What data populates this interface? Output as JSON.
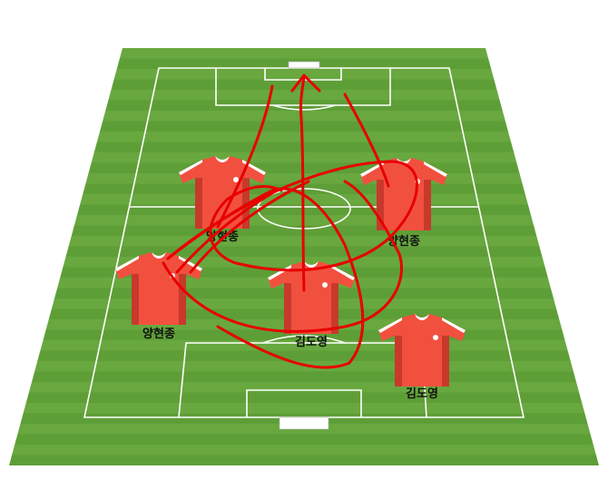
{
  "players": [
    {
      "name": "양현종"
    },
    {
      "name": "양현종"
    },
    {
      "name": "양현종"
    },
    {
      "name": "김도영"
    },
    {
      "name": "김도영"
    }
  ]
}
